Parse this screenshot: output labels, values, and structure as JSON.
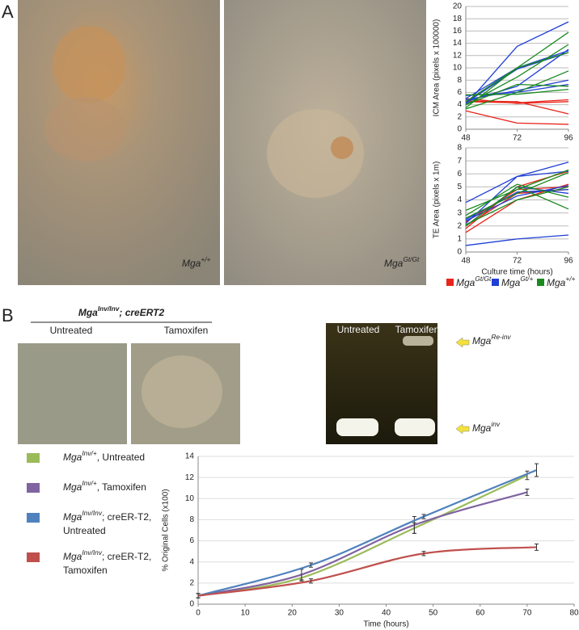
{
  "panel_a": {
    "label": "A",
    "images": [
      {
        "base": "Mga",
        "sup": "+/+"
      },
      {
        "base": "Mga",
        "sup": "Gt/Gt"
      }
    ]
  },
  "panel_b": {
    "label": "B",
    "genotype": {
      "base": "Mga",
      "sup": "Inv/Inv",
      "rest": "; creERT2"
    },
    "conditions": [
      "Untreated",
      "Tamoxifen"
    ],
    "gel_lanes": [
      "Untreated",
      "Tamoxifen"
    ],
    "gel_bands": [
      {
        "base": "Mga",
        "sup": "Re-inv"
      },
      {
        "base": "Mga",
        "sup": "inv"
      }
    ]
  },
  "chart_data": [
    {
      "type": "line",
      "y_label": "ICM Area (pixels x 100000)",
      "x": [
        48,
        72,
        96
      ],
      "xlim": [
        48,
        96
      ],
      "xticks": [
        48,
        72,
        96
      ],
      "ylim": [
        0,
        20
      ],
      "yticks": [
        0,
        2,
        4,
        6,
        8,
        10,
        12,
        14,
        16,
        18,
        20
      ],
      "grid": true,
      "series": [
        {
          "name": {
            "base": "Mga",
            "sup": "Gt/Gt"
          },
          "color": "#e8251b",
          "lines": [
            [
              3,
              1,
              0.8
            ],
            [
              4.6,
              4.5,
              2.5
            ],
            [
              5,
              4.2,
              4.5
            ],
            [
              4.5,
              4.3,
              4.8
            ]
          ]
        },
        {
          "name": {
            "base": "Mga",
            "sup": "Gt/+"
          },
          "color": "#1f3fd6",
          "lines": [
            [
              4,
              13.5,
              17.5
            ],
            [
              5,
              10,
              12.8
            ],
            [
              4.5,
              7,
              13
            ],
            [
              4.3,
              9.8,
              12.5
            ],
            [
              5.5,
              6,
              7.3
            ],
            [
              4.8,
              6.3,
              8
            ]
          ]
        },
        {
          "name": {
            "base": "Mga",
            "sup": "+/+"
          },
          "color": "#1a8a1f",
          "lines": [
            [
              3.5,
              10,
              15.8
            ],
            [
              4,
              8.5,
              13.8
            ],
            [
              3.3,
              6,
              9.5
            ],
            [
              4,
              7.3,
              7
            ],
            [
              5.6,
              5.7,
              6.5
            ],
            [
              4.5,
              10,
              12.5
            ]
          ]
        }
      ]
    },
    {
      "type": "line",
      "y_label": "TE Area (pixels x 1m)",
      "x_label": "Culture time (hours)",
      "x": [
        48,
        72,
        96
      ],
      "xlim": [
        48,
        96
      ],
      "xticks": [
        48,
        72,
        96
      ],
      "ylim": [
        0,
        8
      ],
      "yticks": [
        0,
        1,
        2,
        3,
        4,
        5,
        6,
        7,
        8
      ],
      "grid": true,
      "series": [
        {
          "color": "#e8251b",
          "lines": [
            [
              1.5,
              4,
              5.2
            ],
            [
              2,
              4.5,
              4.8
            ],
            [
              1.8,
              5,
              6.2
            ],
            [
              2.3,
              4.8,
              5
            ]
          ]
        },
        {
          "color": "#1f3fd6",
          "lines": [
            [
              0.5,
              1,
              1.3
            ],
            [
              3.8,
              5.8,
              6.9
            ],
            [
              2.2,
              5.8,
              6.2
            ],
            [
              2.5,
              4.6,
              4.8
            ],
            [
              2,
              5,
              4.5
            ],
            [
              2.4,
              4.3,
              5.1
            ]
          ]
        },
        {
          "color": "#1a8a1f",
          "lines": [
            [
              2,
              5,
              3.3
            ],
            [
              2.6,
              4.5,
              6.1
            ],
            [
              2.8,
              5.2,
              4.2
            ],
            [
              3.2,
              4.8,
              6.3
            ],
            [
              2.1,
              4,
              5
            ]
          ]
        }
      ]
    },
    {
      "type": "line",
      "y_label": "% Original Cells (x100)",
      "x_label": "Time (hours)",
      "xlim": [
        0,
        80
      ],
      "xticks": [
        0,
        10,
        20,
        30,
        40,
        50,
        60,
        70,
        80
      ],
      "ylim": [
        0,
        14
      ],
      "yticks": [
        0,
        2,
        4,
        6,
        8,
        10,
        12,
        14
      ],
      "grid": true,
      "series": [
        {
          "name": {
            "base": "Mga",
            "sup": "Inv/+",
            "rest": ", Untreated"
          },
          "color": "#9bbb59",
          "x": [
            0,
            22,
            46,
            70
          ],
          "values": [
            0.8,
            2.5,
            7.2,
            12.2
          ],
          "errors": [
            0.2,
            0.3,
            0.5,
            0.4
          ]
        },
        {
          "name": {
            "base": "Mga",
            "sup": "Inv/+",
            "rest": ", Tamoxifen"
          },
          "color": "#8064a2",
          "x": [
            0,
            22,
            46,
            70
          ],
          "values": [
            0.8,
            2.8,
            7.5,
            10.6
          ],
          "errors": [
            0.2,
            0.5,
            0.8,
            0.3
          ]
        },
        {
          "name": {
            "base": "Mga",
            "sup": "Inv/Inv",
            "rest": "; creER-T2,",
            "line2": "Untreated"
          },
          "color": "#4f81bd",
          "x": [
            0,
            24,
            48,
            72
          ],
          "values": [
            0.8,
            3.7,
            8.3,
            12.7
          ],
          "errors": [
            0.2,
            0.2,
            0.2,
            0.6
          ]
        },
        {
          "name": {
            "base": "Mga",
            "sup": "Inv/Inv",
            "rest": "; creER-T2,",
            "line2": "Tamoxifen"
          },
          "color": "#c0504d",
          "x": [
            0,
            24,
            48,
            72
          ],
          "values": [
            0.8,
            2.2,
            4.8,
            5.4
          ],
          "errors": [
            0.2,
            0.2,
            0.2,
            0.3
          ]
        }
      ]
    }
  ]
}
